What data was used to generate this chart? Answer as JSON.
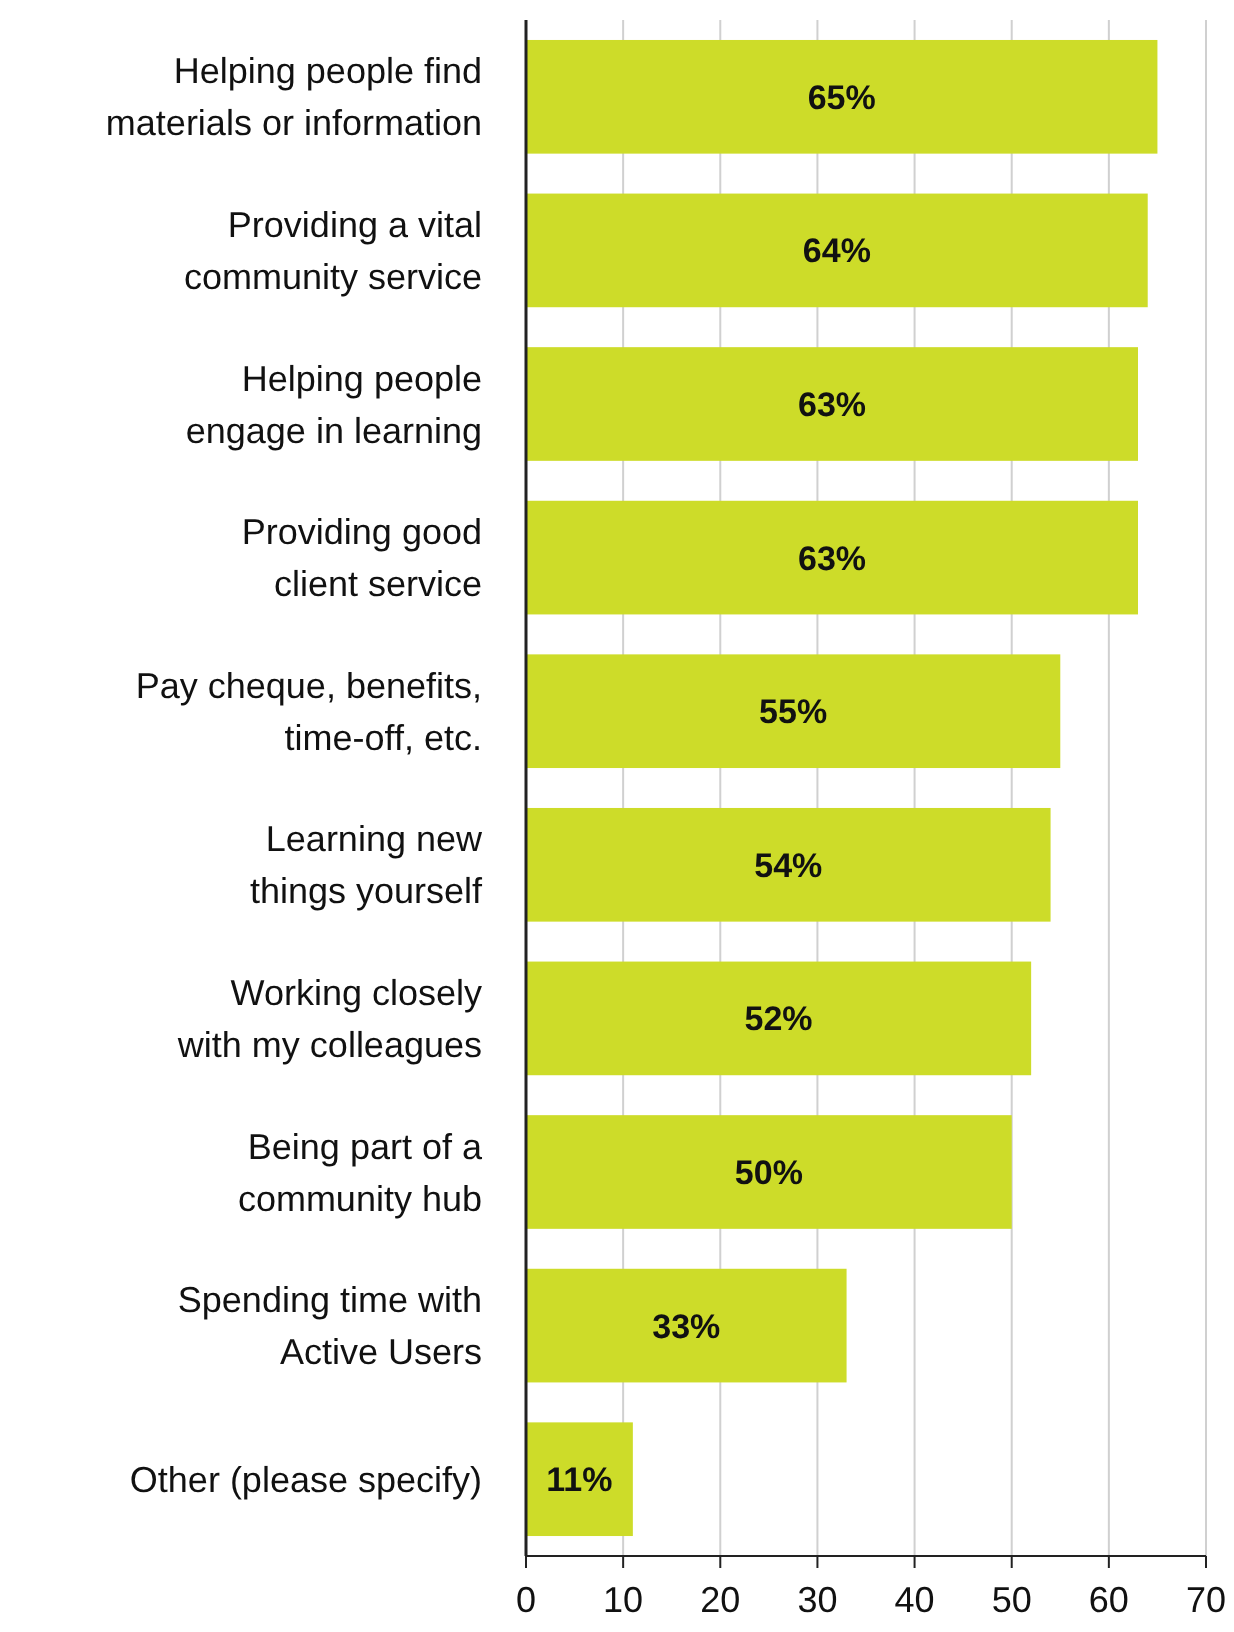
{
  "chart_data": {
    "type": "bar",
    "orientation": "horizontal",
    "categories": [
      "Helping people find\nmaterials or information",
      "Providing a vital\ncommunity service",
      "Helping people\nengage in learning",
      "Providing good\nclient service",
      "Pay cheque, benefits,\ntime-off, etc.",
      "Learning new\nthings yourself",
      "Working closely\nwith my colleagues",
      "Being part of a\ncommunity hub",
      "Spending time with\nActive Users",
      "Other (please specify)"
    ],
    "values": [
      65,
      64,
      63,
      63,
      55,
      54,
      52,
      50,
      33,
      11
    ],
    "value_labels": [
      "65%",
      "64%",
      "63%",
      "63%",
      "55%",
      "54%",
      "52%",
      "50%",
      "33%",
      "11%"
    ],
    "color": "#cddc29",
    "xlim": [
      0,
      70
    ],
    "xticks": [
      0,
      10,
      20,
      30,
      40,
      50,
      60,
      70
    ],
    "grid": "x"
  }
}
